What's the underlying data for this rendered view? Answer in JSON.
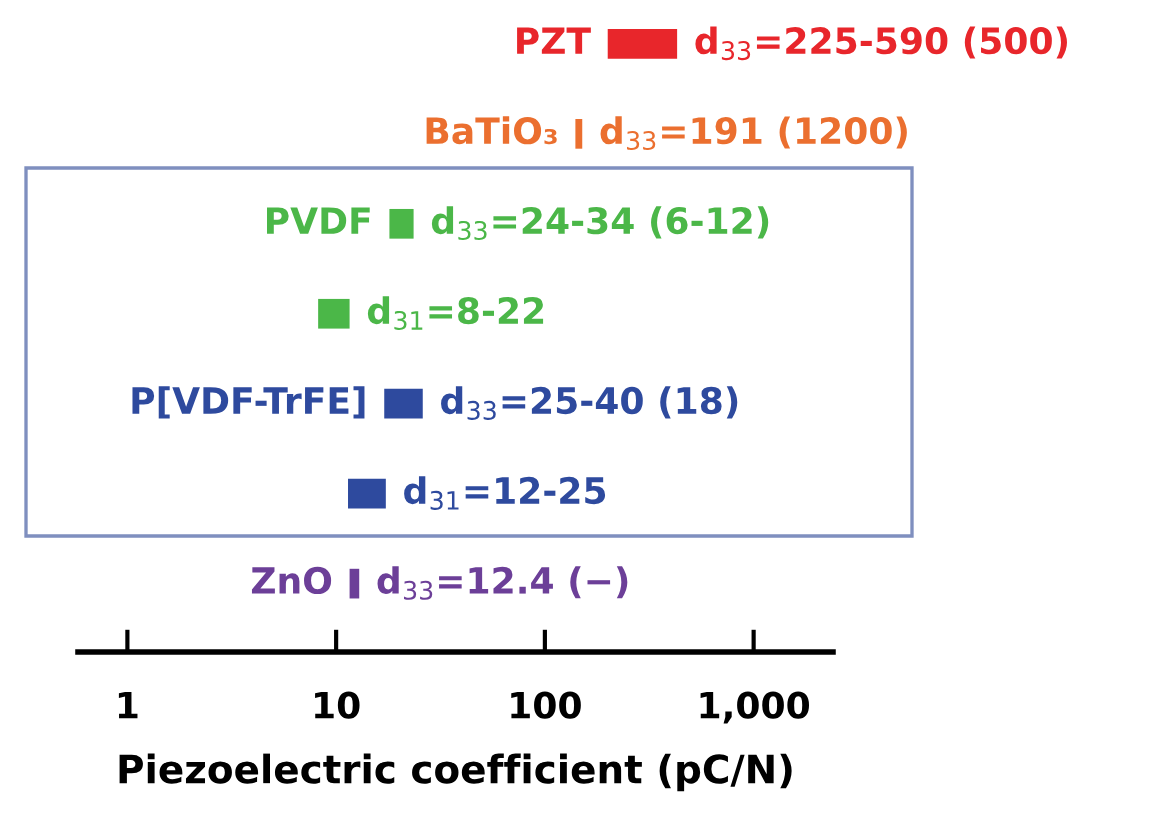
{
  "chart_data": {
    "type": "bar",
    "orientation": "horizontal",
    "xlabel": "Piezoelectric coefficient (pC/N)",
    "categories": [
      "PZT",
      "BaTiO₃",
      "PVDF",
      null,
      "P[VDF-TrFE]",
      null,
      "ZnO"
    ],
    "base": [
      200,
      140,
      18,
      8.2,
      17,
      11.4,
      11.6
    ],
    "values": [
      230,
      11,
      5.5,
      3.4,
      9,
      5.9,
      1.3
    ],
    "colors": [
      "#e8262b",
      "#eb6f2f",
      "#4bb748",
      "#4bb748",
      "#2e4a9e",
      "#2e4a9e",
      "#6c3f98"
    ],
    "value_labels": [
      "d$_{33}$=225-590 (500)",
      "d$_{33}$=191 (1200)",
      "d$_{33}$=24-34 (6-12)",
      "d$_{31}$=8-22",
      "d$_{33}$=25-40 (18)",
      "d$_{31}$=12-25",
      "d$_{33}$=12.4 (−)"
    ],
    "log": "x",
    "xlim": [
      0.58,
      2400
    ],
    "xticks": [
      1,
      10,
      100,
      {
        "value": 1000,
        "label": "1,000"
      }
    ],
    "grid": false,
    "legend": false,
    "tick_labels": "x"
  }
}
